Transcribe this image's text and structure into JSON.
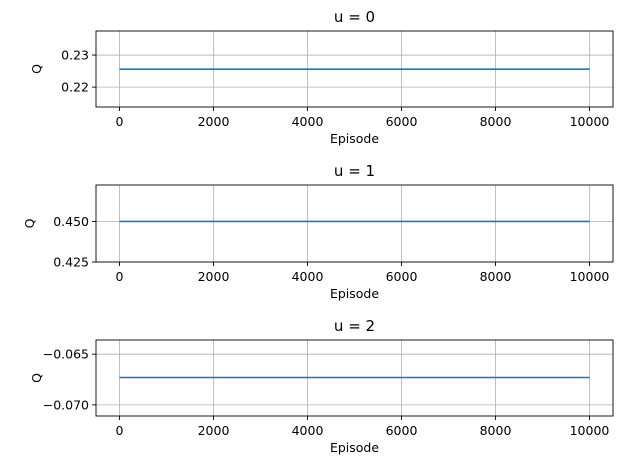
{
  "chart_data": [
    {
      "type": "line",
      "title": "u = 0",
      "xlabel": "Episode",
      "ylabel": "Q",
      "xlim": [
        -500,
        10500
      ],
      "ylim": [
        0.2138,
        0.2375
      ],
      "xticks": [
        0,
        2000,
        4000,
        6000,
        8000,
        10000
      ],
      "xtick_labels": [
        "0",
        "2000",
        "4000",
        "6000",
        "8000",
        "10000"
      ],
      "yticks": [
        0.22,
        0.23
      ],
      "ytick_labels": [
        "0.22",
        "0.23"
      ],
      "grid": true,
      "series": [
        {
          "x": [
            0,
            10000
          ],
          "y": [
            0.2256,
            0.2256
          ],
          "color": "#1f77b4"
        }
      ]
    },
    {
      "type": "line",
      "title": "u = 1",
      "xlabel": "Episode",
      "ylabel": "Q",
      "xlim": [
        -500,
        10500
      ],
      "ylim": [
        0.425,
        0.4725
      ],
      "xticks": [
        0,
        2000,
        4000,
        6000,
        8000,
        10000
      ],
      "xtick_labels": [
        "0",
        "2000",
        "4000",
        "6000",
        "8000",
        "10000"
      ],
      "yticks": [
        0.425,
        0.45
      ],
      "ytick_labels": [
        "0.425",
        "0.450"
      ],
      "grid": true,
      "series": [
        {
          "x": [
            0,
            10000
          ],
          "y": [
            0.45,
            0.45
          ],
          "color": "#1f77b4"
        }
      ]
    },
    {
      "type": "line",
      "title": "u = 2",
      "xlabel": "Episode",
      "ylabel": "Q",
      "xlim": [
        -500,
        10500
      ],
      "ylim": [
        -0.0711,
        -0.0636
      ],
      "xticks": [
        0,
        2000,
        4000,
        6000,
        8000,
        10000
      ],
      "xtick_labels": [
        "0",
        "2000",
        "4000",
        "6000",
        "8000",
        "10000"
      ],
      "yticks": [
        -0.07,
        -0.065
      ],
      "ytick_labels": [
        "−0.070",
        "−0.065"
      ],
      "grid": true,
      "series": [
        {
          "x": [
            0,
            10000
          ],
          "y": [
            -0.0673,
            -0.0673
          ],
          "color": "#1f77b4"
        }
      ]
    }
  ]
}
